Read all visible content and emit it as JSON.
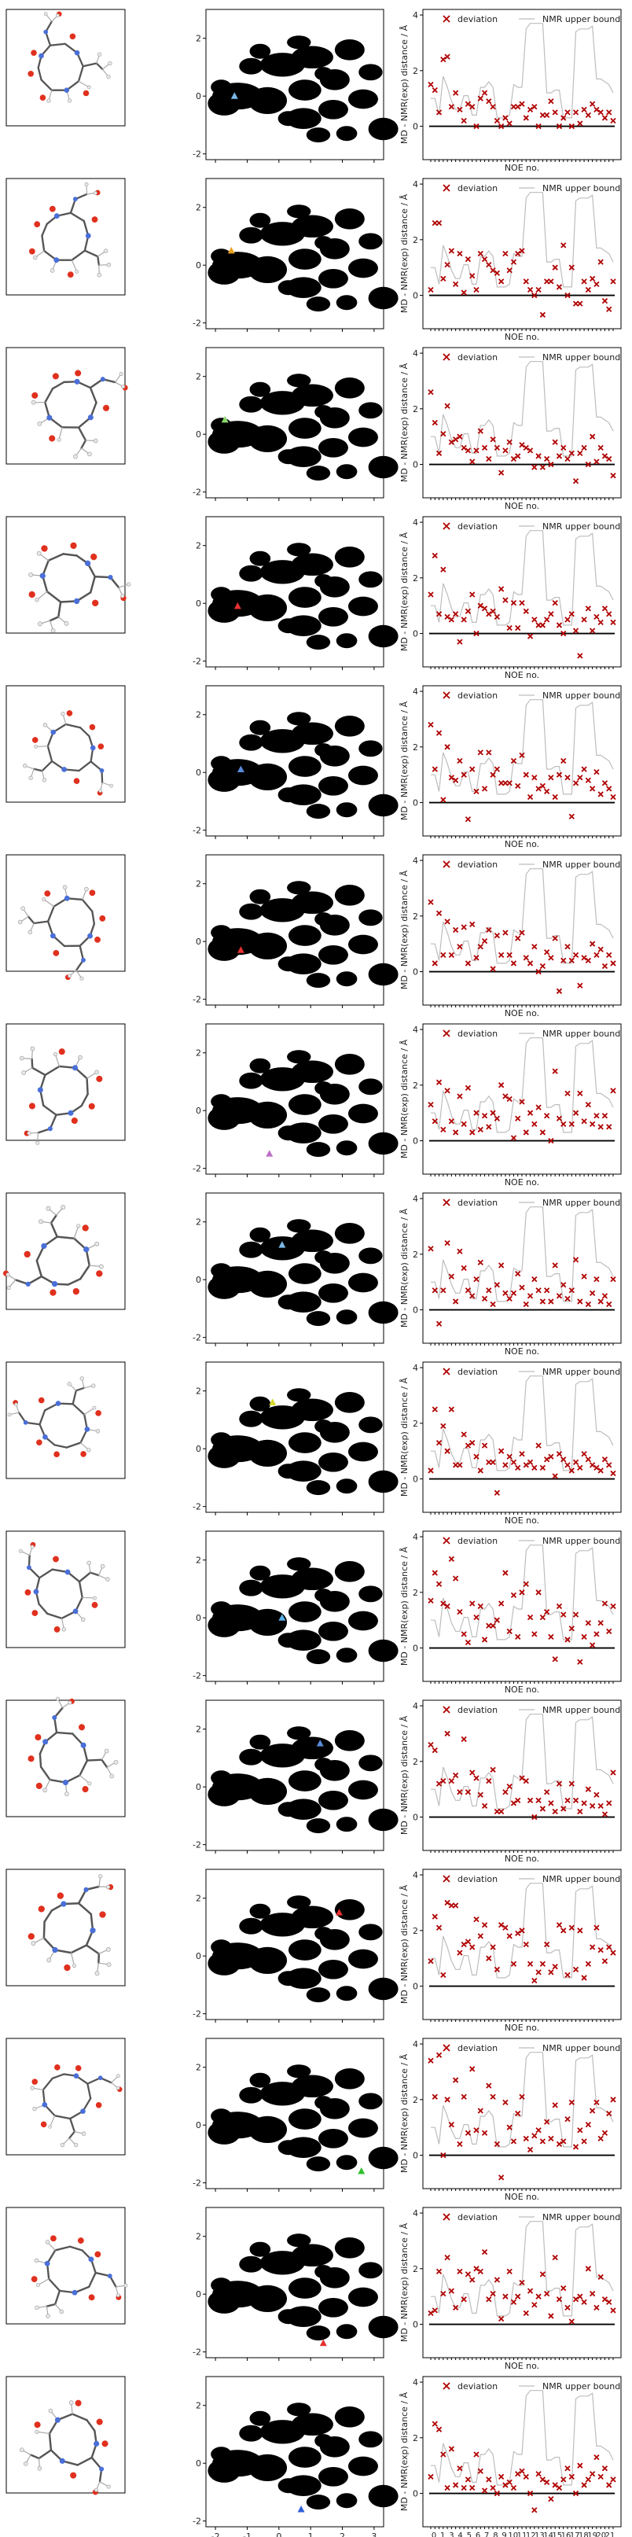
{
  "chart_data": {
    "type": "composite",
    "panel_count": 15,
    "scatter_axes": {
      "x_ticks": [
        "-2",
        "-1",
        "0",
        "1",
        "2",
        "3"
      ],
      "y_ticks": [
        "2",
        "0",
        "-2"
      ],
      "xlim": [
        -2.3,
        3.3
      ],
      "ylim": [
        -2.2,
        3.0
      ]
    },
    "noe_axes": {
      "ylabel": "MD - NMR(exp) distance / Å",
      "xlabel": "NOE no.",
      "y_ticks": [
        "4",
        "2",
        "0"
      ],
      "ylim": [
        -1.2,
        4.2
      ],
      "n_noe": 45,
      "legend": {
        "deviation": "deviation",
        "upper_bound": "NMR upper bound"
      },
      "x_tick_labels_row1": [
        "0",
        "1",
        "3",
        "4",
        "5",
        "6",
        "7",
        "8",
        "9",
        "10",
        "11",
        "12",
        "13",
        "14",
        "15",
        "16",
        "17",
        "18",
        "19",
        "20",
        "21"
      ],
      "x_tick_labels_row2": [
        "1",
        "2",
        "3",
        "4",
        "5",
        "7",
        "9",
        "10",
        "11",
        "13",
        "14",
        "15",
        "16",
        "17",
        "18",
        "19",
        "20",
        "21"
      ]
    },
    "upper_bound": [
      1.0,
      1.0,
      0.4,
      1.8,
      1.4,
      0.9,
      0.6,
      0.6,
      1.1,
      1.1,
      0.4,
      0.4,
      1.4,
      1.4,
      1.6,
      1.4,
      0.3,
      0.3,
      0.3,
      0.4,
      1.5,
      1.4,
      1.4,
      3.5,
      3.7,
      3.7,
      3.7,
      3.7,
      1.2,
      1.2,
      1.3,
      1.3,
      0.3,
      0.3,
      0.3,
      3.4,
      3.5,
      3.5,
      3.5,
      3.6,
      1.7,
      1.7,
      1.6,
      1.5,
      1.2
    ],
    "highlight_points": [
      {
        "x": -1.4,
        "y": 0.0,
        "color": "#7ab8e8"
      },
      {
        "x": -1.5,
        "y": 0.5,
        "color": "#e8a020"
      },
      {
        "x": -1.7,
        "y": 0.5,
        "color": "#8ad86a"
      },
      {
        "x": -1.3,
        "y": -0.1,
        "color": "#e53030"
      },
      {
        "x": -1.2,
        "y": 0.1,
        "color": "#5a8ad8"
      },
      {
        "x": -1.2,
        "y": -0.3,
        "color": "#e53030"
      },
      {
        "x": -0.3,
        "y": -1.5,
        "color": "#c070c8"
      },
      {
        "x": 0.1,
        "y": 1.2,
        "color": "#7ab8e8"
      },
      {
        "x": -0.2,
        "y": 1.6,
        "color": "#d8d82a"
      },
      {
        "x": 0.1,
        "y": 0.0,
        "color": "#5ab0e8"
      },
      {
        "x": 1.3,
        "y": 1.5,
        "color": "#5a8ad8"
      },
      {
        "x": 1.9,
        "y": 1.5,
        "color": "#e53030"
      },
      {
        "x": 2.6,
        "y": -1.6,
        "color": "#30c030"
      },
      {
        "x": 1.4,
        "y": -1.7,
        "color": "#e53030"
      },
      {
        "x": 0.7,
        "y": -1.6,
        "color": "#3060d8"
      }
    ],
    "deviations": [
      [
        1.5,
        1.3,
        0.5,
        2.4,
        2.5,
        0.7,
        1.2,
        0.6,
        0.2,
        0.8,
        0.7,
        0.0,
        1.0,
        1.2,
        0.9,
        0.7,
        0.2,
        0.0,
        0.3,
        0.1,
        0.7,
        0.7,
        0.8,
        0.3,
        0.6,
        0.7,
        0.0,
        0.4,
        0.4,
        0.9,
        0.5,
        0.0,
        0.3,
        0.5,
        0.0,
        0.5,
        0.1,
        0.6,
        0.4,
        0.8,
        0.6,
        0.5,
        0.3,
        0.5,
        0.2
      ],
      [
        0.2,
        2.6,
        2.6,
        0.6,
        1.1,
        1.6,
        0.4,
        1.5,
        0.1,
        1.3,
        0.7,
        0.2,
        1.5,
        1.3,
        1.1,
        0.9,
        0.8,
        0.5,
        1.5,
        0.9,
        1.2,
        1.5,
        1.6,
        0.5,
        0.2,
        0.0,
        0.2,
        -0.7,
        0.5,
        0.5,
        1.0,
        0.3,
        1.8,
        0.0,
        1.0,
        -0.3,
        -0.3,
        0.5,
        0.2,
        0.6,
        0.4,
        1.2,
        -0.2,
        -0.5,
        0.5
      ],
      [
        2.6,
        1.5,
        0.4,
        1.1,
        2.1,
        0.8,
        0.9,
        1.0,
        0.6,
        0.5,
        0.1,
        0.5,
        1.2,
        0.6,
        0.2,
        0.9,
        0.6,
        -0.3,
        0.5,
        0.8,
        0.2,
        0.3,
        0.7,
        0.6,
        0.5,
        -0.1,
        0.3,
        -0.1,
        0.2,
        0.0,
        0.8,
        0.3,
        0.6,
        0.2,
        0.4,
        -0.6,
        0.4,
        0.6,
        0.0,
        1.0,
        0.1,
        0.6,
        0.3,
        0.2,
        -0.4
      ],
      [
        1.4,
        2.8,
        0.7,
        2.3,
        0.6,
        0.5,
        0.7,
        -0.3,
        0.5,
        0.8,
        1.4,
        0.0,
        1.0,
        0.9,
        0.7,
        0.8,
        0.6,
        1.6,
        1.2,
        0.2,
        1.1,
        0.2,
        1.1,
        0.8,
        -0.1,
        0.5,
        0.3,
        0.3,
        0.5,
        0.7,
        1.1,
        0.3,
        0.0,
        0.5,
        0.7,
        0.1,
        -0.8,
        0.5,
        0.9,
        0.1,
        0.6,
        0.4,
        0.9,
        0.7,
        0.4
      ],
      [
        2.8,
        1.2,
        2.5,
        0.1,
        2.0,
        0.9,
        0.8,
        1.5,
        1.0,
        -0.6,
        1.2,
        0.4,
        1.8,
        0.5,
        1.8,
        1.0,
        1.2,
        0.7,
        0.7,
        0.7,
        1.5,
        0.6,
        1.7,
        1.0,
        0.2,
        0.9,
        0.5,
        0.6,
        0.4,
        0.9,
        0.2,
        1.0,
        1.5,
        0.9,
        -0.5,
        0.7,
        0.9,
        1.2,
        0.8,
        0.5,
        1.1,
        0.3,
        0.7,
        0.5,
        0.2
      ],
      [
        2.5,
        0.3,
        2.1,
        0.6,
        1.8,
        0.6,
        1.5,
        0.9,
        1.6,
        0.3,
        1.7,
        0.5,
        0.9,
        1.1,
        1.5,
        0.1,
        1.3,
        0.6,
        1.4,
        0.6,
        0.3,
        1.2,
        1.4,
        0.5,
        0.3,
        0.9,
        0.0,
        0.2,
        0.7,
        0.5,
        1.2,
        -0.7,
        0.4,
        0.9,
        0.4,
        0.6,
        -0.5,
        0.5,
        0.4,
        1.0,
        0.6,
        0.8,
        0.2,
        0.6,
        0.3
      ],
      [
        1.3,
        0.7,
        2.1,
        0.4,
        1.8,
        0.7,
        0.3,
        1.6,
        0.6,
        1.9,
        0.3,
        1.0,
        0.4,
        0.9,
        0.5,
        1.0,
        0.8,
        2.0,
        1.6,
        1.5,
        0.1,
        0.8,
        1.4,
        0.3,
        1.0,
        0.6,
        1.2,
        0.3,
        0.9,
        0.0,
        2.5,
        0.8,
        0.6,
        1.7,
        0.6,
        1.0,
        1.7,
        0.7,
        1.3,
        0.6,
        0.9,
        0.5,
        0.9,
        0.5,
        1.8
      ],
      [
        2.2,
        0.7,
        -0.5,
        0.7,
        2.4,
        1.2,
        0.3,
        2.1,
        1.5,
        0.7,
        0.5,
        1.1,
        1.7,
        0.4,
        0.7,
        0.2,
        0.9,
        1.6,
        0.6,
        0.4,
        0.6,
        1.3,
        0.8,
        0.2,
        0.5,
        1.1,
        0.7,
        0.3,
        0.7,
        0.3,
        1.6,
        0.5,
        0.9,
        0.4,
        0.7,
        1.8,
        0.3,
        1.2,
        0.2,
        0.6,
        1.1,
        0.3,
        0.5,
        0.2,
        1.1
      ],
      [
        0.3,
        2.5,
        1.3,
        1.9,
        1.0,
        2.5,
        0.5,
        0.5,
        1.6,
        1.2,
        1.3,
        0.8,
        0.3,
        1.2,
        0.6,
        0.6,
        -0.5,
        1.0,
        0.5,
        0.8,
        0.6,
        0.4,
        0.9,
        0.5,
        0.6,
        0.4,
        1.2,
        0.4,
        0.7,
        0.8,
        0.1,
        0.9,
        0.7,
        0.5,
        0.3,
        0.6,
        0.4,
        0.9,
        0.7,
        0.5,
        0.4,
        0.3,
        0.7,
        0.5,
        0.2
      ],
      [
        1.7,
        2.7,
        2.3,
        1.6,
        1.5,
        3.2,
        2.5,
        1.3,
        0.5,
        0.2,
        1.6,
        1.1,
        1.5,
        0.3,
        0.8,
        0.8,
        1.0,
        1.6,
        2.7,
        0.6,
        1.9,
        0.4,
        2.0,
        2.3,
        1.1,
        0.5,
        2.0,
        1.1,
        1.3,
        0.4,
        -0.4,
        1.5,
        1.2,
        0.3,
        0.7,
        1.2,
        -0.5,
        0.4,
        0.9,
        0.1,
        0.5,
        0.9,
        1.6,
        0.6,
        1.5
      ],
      [
        2.6,
        2.4,
        1.2,
        1.3,
        3.0,
        1.3,
        1.5,
        0.9,
        2.8,
        0.9,
        1.6,
        1.4,
        0.8,
        0.4,
        1.3,
        1.7,
        0.2,
        0.2,
        0.9,
        1.1,
        0.5,
        0.6,
        1.4,
        1.3,
        0.6,
        0.0,
        0.6,
        0.3,
        0.9,
        0.5,
        0.2,
        1.2,
        0.3,
        0.6,
        1.2,
        0.6,
        0.2,
        0.5,
        1.0,
        0.4,
        0.8,
        0.4,
        0.1,
        0.5,
        1.6
      ],
      [
        0.9,
        2.5,
        2.1,
        0.4,
        3.0,
        2.9,
        2.9,
        1.2,
        1.5,
        1.6,
        1.4,
        2.4,
        1.8,
        2.2,
        1.0,
        1.4,
        0.6,
        2.2,
        2.1,
        1.8,
        0.8,
        1.9,
        2.0,
        1.5,
        0.8,
        0.2,
        0.5,
        0.8,
        1.5,
        0.5,
        0.7,
        2.2,
        2.0,
        0.4,
        2.1,
        0.6,
        2.0,
        0.3,
        0.8,
        1.4,
        2.1,
        1.3,
        0.9,
        1.4,
        1.2
      ],
      [
        3.4,
        2.1,
        3.6,
        0.0,
        2.0,
        1.1,
        2.7,
        0.4,
        2.1,
        0.8,
        3.1,
        0.9,
        1.6,
        0.8,
        2.5,
        2.1,
        0.4,
        -0.8,
        1.9,
        1.0,
        0.5,
        1.5,
        2.1,
        0.6,
        0.2,
        0.7,
        0.9,
        0.5,
        1.2,
        0.6,
        1.8,
        0.4,
        0.5,
        1.3,
        1.9,
        0.3,
        0.9,
        0.5,
        1.1,
        1.6,
        1.9,
        0.6,
        0.8,
        1.5,
        2.0
      ],
      [
        0.4,
        0.5,
        1.9,
        1.1,
        2.4,
        1.2,
        0.6,
        1.9,
        0.9,
        1.8,
        1.6,
        2.0,
        1.9,
        2.6,
        0.9,
        1.1,
        1.6,
        0.2,
        1.0,
        1.9,
        0.8,
        1.0,
        1.5,
        0.4,
        1.2,
        0.7,
        1.0,
        1.8,
        1.1,
        0.3,
        2.4,
        0.9,
        1.3,
        0.6,
        0.1,
        0.9,
        1.0,
        0.8,
        2.0,
        1.1,
        0.6,
        1.7,
        0.9,
        0.8,
        0.5
      ],
      [
        0.6,
        2.5,
        2.3,
        1.4,
        0.2,
        1.6,
        0.3,
        0.9,
        0.2,
        0.5,
        0.2,
        1.4,
        0.8,
        0.1,
        0.5,
        0.2,
        0.0,
        0.6,
        0.3,
        0.4,
        0.2,
        0.7,
        0.8,
        0.6,
        0.0,
        -0.6,
        0.7,
        0.5,
        0.4,
        -0.2,
        0.3,
        0.2,
        0.5,
        0.9,
        0.6,
        0.0,
        1.0,
        0.3,
        0.5,
        0.7,
        1.3,
        0.6,
        0.9,
        0.3,
        0.5
      ]
    ]
  }
}
